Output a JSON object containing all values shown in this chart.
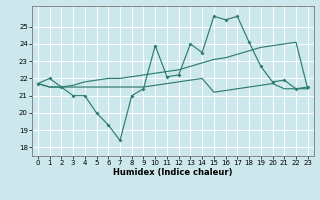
{
  "xlabel": "Humidex (Indice chaleur)",
  "bg_color": "#cce8ec",
  "grid_color": "#ffffff",
  "line_color": "#2e7d6e",
  "xlim": [
    -0.5,
    23.5
  ],
  "ylim": [
    17.5,
    26.2
  ],
  "yticks": [
    18,
    19,
    20,
    21,
    22,
    23,
    24,
    25
  ],
  "xticks": [
    0,
    1,
    2,
    3,
    4,
    5,
    6,
    7,
    8,
    9,
    10,
    11,
    12,
    13,
    14,
    15,
    16,
    17,
    18,
    19,
    20,
    21,
    22,
    23
  ],
  "line1_x": [
    0,
    1,
    2,
    3,
    4,
    5,
    6,
    7,
    8,
    9,
    10,
    11,
    12,
    13,
    14,
    15,
    16,
    17,
    18,
    19,
    20,
    21,
    22,
    23
  ],
  "line1_y": [
    21.7,
    22.0,
    21.5,
    21.0,
    21.0,
    20.0,
    19.3,
    18.4,
    21.0,
    21.4,
    23.9,
    22.1,
    22.2,
    24.0,
    23.5,
    25.6,
    25.4,
    25.6,
    24.1,
    22.7,
    21.8,
    21.9,
    21.4,
    21.5
  ],
  "line2_x": [
    0,
    1,
    2,
    3,
    4,
    5,
    6,
    7,
    8,
    9,
    10,
    11,
    12,
    13,
    14,
    15,
    16,
    17,
    18,
    19,
    20,
    21,
    22,
    23
  ],
  "line2_y": [
    21.7,
    21.5,
    21.5,
    21.6,
    21.8,
    21.9,
    22.0,
    22.0,
    22.1,
    22.2,
    22.3,
    22.4,
    22.5,
    22.7,
    22.9,
    23.1,
    23.2,
    23.4,
    23.6,
    23.8,
    23.9,
    24.0,
    24.1,
    21.4
  ],
  "line3_x": [
    0,
    1,
    2,
    3,
    4,
    5,
    6,
    7,
    8,
    9,
    10,
    11,
    12,
    13,
    14,
    15,
    16,
    17,
    18,
    19,
    20,
    21,
    22,
    23
  ],
  "line3_y": [
    21.7,
    21.5,
    21.5,
    21.5,
    21.5,
    21.5,
    21.5,
    21.5,
    21.5,
    21.5,
    21.6,
    21.7,
    21.8,
    21.9,
    22.0,
    21.2,
    21.3,
    21.4,
    21.5,
    21.6,
    21.7,
    21.4,
    21.4,
    21.4
  ]
}
